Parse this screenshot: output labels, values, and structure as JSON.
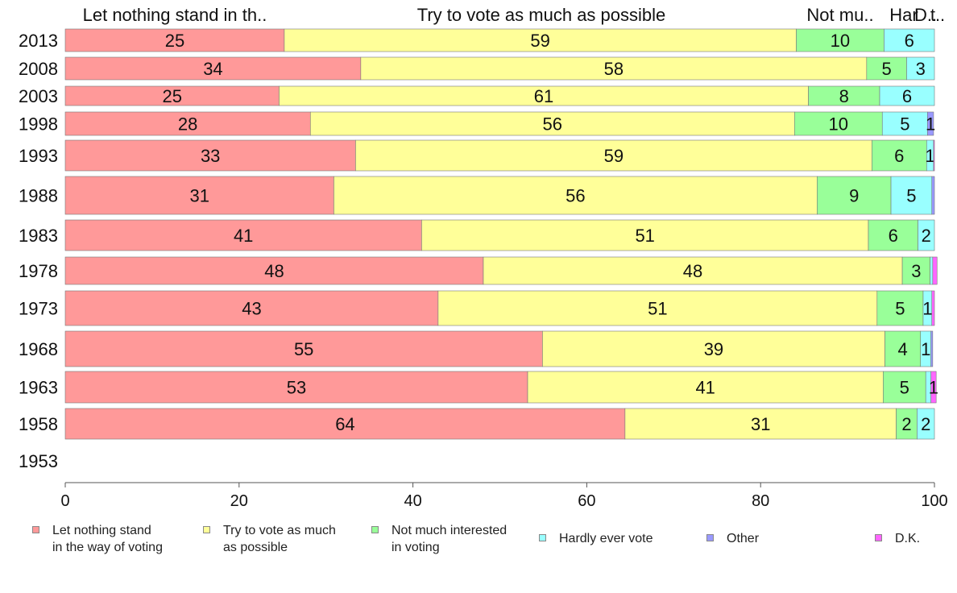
{
  "chart_data": {
    "type": "bar",
    "orientation": "horizontal",
    "stacked": true,
    "categories": [
      "2013",
      "2008",
      "2003",
      "1998",
      "1993",
      "1988",
      "1983",
      "1978",
      "1973",
      "1968",
      "1963",
      "1958",
      "1953"
    ],
    "series": [
      {
        "name": "Let nothing stand in the way of voting",
        "color": "#ff9999",
        "values": [
          25.2,
          34.0,
          24.6,
          28.2,
          33.4,
          30.9,
          41.0,
          48.1,
          42.9,
          54.9,
          53.2,
          64.4,
          null
        ],
        "labels": [
          "25",
          "34",
          "25",
          "28",
          "33",
          "31",
          "41",
          "48",
          "43",
          "55",
          "53",
          "64",
          ""
        ]
      },
      {
        "name": "Try to vote as much as possible",
        "color": "#ffff99",
        "values": [
          58.9,
          58.2,
          60.9,
          55.7,
          59.4,
          55.6,
          51.4,
          48.2,
          50.5,
          39.4,
          40.9,
          31.2,
          null
        ],
        "labels": [
          "59",
          "58",
          "61",
          "56",
          "59",
          "56",
          "51",
          "48",
          "51",
          "39",
          "41",
          "31",
          ""
        ]
      },
      {
        "name": "Not much interested in voting",
        "color": "#99ff99",
        "values": [
          10.1,
          4.6,
          8.2,
          10.1,
          6.3,
          8.5,
          5.7,
          3.2,
          5.3,
          4.1,
          4.9,
          2.4,
          null
        ],
        "labels": [
          "10",
          "5",
          "8",
          "10",
          "6",
          "9",
          "6",
          "3",
          "5",
          "4",
          "5",
          "2",
          ""
        ]
      },
      {
        "name": "Hardly ever vote",
        "color": "#99ffff",
        "values": [
          5.8,
          3.2,
          6.3,
          5.2,
          0.8,
          4.7,
          1.9,
          0.3,
          1.0,
          1.2,
          0.6,
          2.0,
          null
        ],
        "labels": [
          "6",
          "3",
          "6",
          "5",
          "1",
          "5",
          "2",
          "",
          "1",
          "1",
          "",
          "2",
          ""
        ]
      },
      {
        "name": "Other",
        "color": "#9999ff",
        "values": [
          0,
          0,
          0,
          0.7,
          0,
          0.3,
          0,
          0,
          0,
          0.2,
          0,
          0,
          null
        ],
        "labels": [
          "",
          "",
          "",
          "1",
          "",
          "",
          "",
          "",
          "",
          "",
          "",
          "",
          ""
        ]
      },
      {
        "name": "D.K.",
        "color": "#ff66ff",
        "values": [
          0,
          0,
          0,
          0,
          0.1,
          0,
          0,
          0.5,
          0.3,
          0,
          0.6,
          0,
          null
        ],
        "labels": [
          "",
          "",
          "",
          "",
          "",
          "",
          "",
          "",
          "",
          "",
          "1",
          "",
          ""
        ]
      }
    ],
    "column_headers": [
      "Let nothing stand in th..",
      "Try to vote as much as possible",
      "Not mu..",
      "Har",
      "D..",
      "t.."
    ],
    "xlim": [
      0,
      100
    ],
    "xticks": [
      0,
      20,
      40,
      60,
      80,
      100
    ],
    "grid": false,
    "legend_position": "bottom"
  },
  "legend": [
    {
      "label": "Let nothing stand\nin the way of voting",
      "color": "#ff9999"
    },
    {
      "label": "Try to vote as much\nas possible",
      "color": "#ffff99"
    },
    {
      "label": "Not much interested\nin voting",
      "color": "#99ff99"
    },
    {
      "label": "Hardly ever vote",
      "color": "#99ffff"
    },
    {
      "label": "Other",
      "color": "#9999ff"
    },
    {
      "label": "D.K.",
      "color": "#ff66ff"
    }
  ]
}
